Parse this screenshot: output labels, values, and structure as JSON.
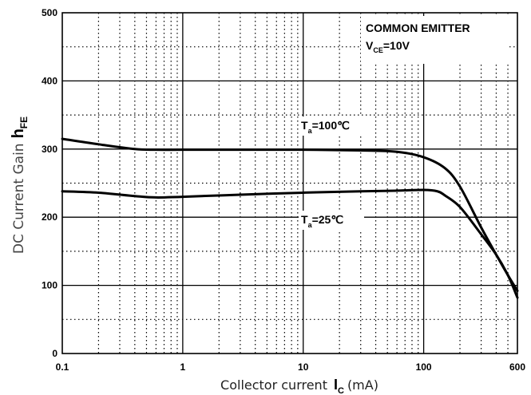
{
  "chart_data": {
    "type": "line",
    "title": "",
    "xlabel": "Collector current",
    "xlabel_symbol": "I",
    "xlabel_symbol_sub": "C",
    "xlabel_unit": "(mA)",
    "ylabel": "DC Current Gain",
    "ylabel_symbol": "h",
    "ylabel_symbol_sub": "FE",
    "x_scale": "log",
    "xlim": [
      0.1,
      600
    ],
    "ylim": [
      0,
      500
    ],
    "grid": true,
    "x_ticks": [
      {
        "value": 0.1,
        "label": "0.1"
      },
      {
        "value": 1,
        "label": "1"
      },
      {
        "value": 10,
        "label": "10"
      },
      {
        "value": 100,
        "label": "100"
      },
      {
        "value": 600,
        "label": "600"
      }
    ],
    "y_ticks": [
      {
        "value": 0,
        "label": "0"
      },
      {
        "value": 100,
        "label": "100"
      },
      {
        "value": 200,
        "label": "200"
      },
      {
        "value": 300,
        "label": "300"
      },
      {
        "value": 400,
        "label": "400"
      },
      {
        "value": 500,
        "label": "500"
      }
    ],
    "annotations": {
      "condition_line1": "COMMON EMITTER",
      "condition_v": "V",
      "condition_v_sub": "CE",
      "condition_v_value": "=10V"
    },
    "series": [
      {
        "name": "T_a=100°C",
        "label_main": "T",
        "label_sub": "a",
        "label_value": "=100℃",
        "x": [
          0.1,
          0.2,
          0.4,
          0.6,
          1,
          3,
          10,
          30,
          60,
          100,
          150,
          200,
          300,
          400,
          500,
          600
        ],
        "y": [
          315,
          307,
          300,
          299,
          299,
          299,
          299,
          298,
          296,
          288,
          272,
          245,
          185,
          145,
          115,
          92
        ]
      },
      {
        "name": "T_a=25°C",
        "label_main": "T",
        "label_sub": "a",
        "label_value": "=25℃",
        "x": [
          0.1,
          0.2,
          0.4,
          0.6,
          1,
          3,
          10,
          30,
          60,
          100,
          130,
          150,
          200,
          300,
          400,
          500,
          600
        ],
        "y": [
          238,
          236,
          231,
          229,
          230,
          233,
          236,
          238,
          239,
          240,
          238,
          232,
          215,
          175,
          145,
          115,
          82
        ]
      }
    ]
  }
}
